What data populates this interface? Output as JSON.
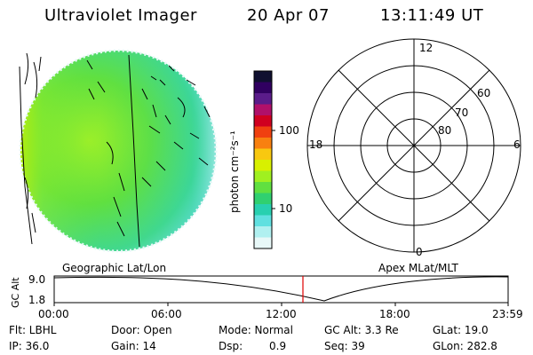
{
  "header": {
    "instrument": "Ultraviolet Imager",
    "date": "20 Apr 07",
    "time": "13:11:49 UT"
  },
  "colorbar": {
    "label": "photon cm⁻²s⁻¹",
    "ticks": [
      "100",
      "10"
    ],
    "colors": [
      "#101030",
      "#300060",
      "#5a1c8a",
      "#b0106a",
      "#d00020",
      "#f04010",
      "#f88010",
      "#f8c810",
      "#d8f000",
      "#a0f020",
      "#60e040",
      "#30d070",
      "#28d0b0",
      "#60e0e0",
      "#b0f0f0",
      "#e8f8f8"
    ]
  },
  "panels": {
    "left_caption": "Geographic Lat/Lon",
    "right_caption": "Apex MLat/MLT"
  },
  "polar": {
    "mlt_labels": {
      "top": "12",
      "bottom": "0",
      "left": "18",
      "right": "6"
    },
    "lat_labels": [
      "60",
      "70",
      "80"
    ]
  },
  "timeline": {
    "y_label": "GC Alt",
    "y_ticks": [
      "9.0",
      "1.8"
    ],
    "x_ticks": [
      "00:00",
      "06:00",
      "12:00",
      "18:00",
      "23:59"
    ],
    "marker_color": "#e00000"
  },
  "info": {
    "flt": "Flt: LBHL",
    "door": "Door: Open",
    "mode": "Mode: Normal",
    "gcalt": "GC Alt: 3.3 Re",
    "glat": "GLat: 19.0",
    "ip": "IP: 36.0",
    "gain": "Gain: 14",
    "dsp_label": "Dsp:",
    "dsp_value": "0.9",
    "seq": "Seq: 39",
    "glon": "GLon: 282.8"
  }
}
